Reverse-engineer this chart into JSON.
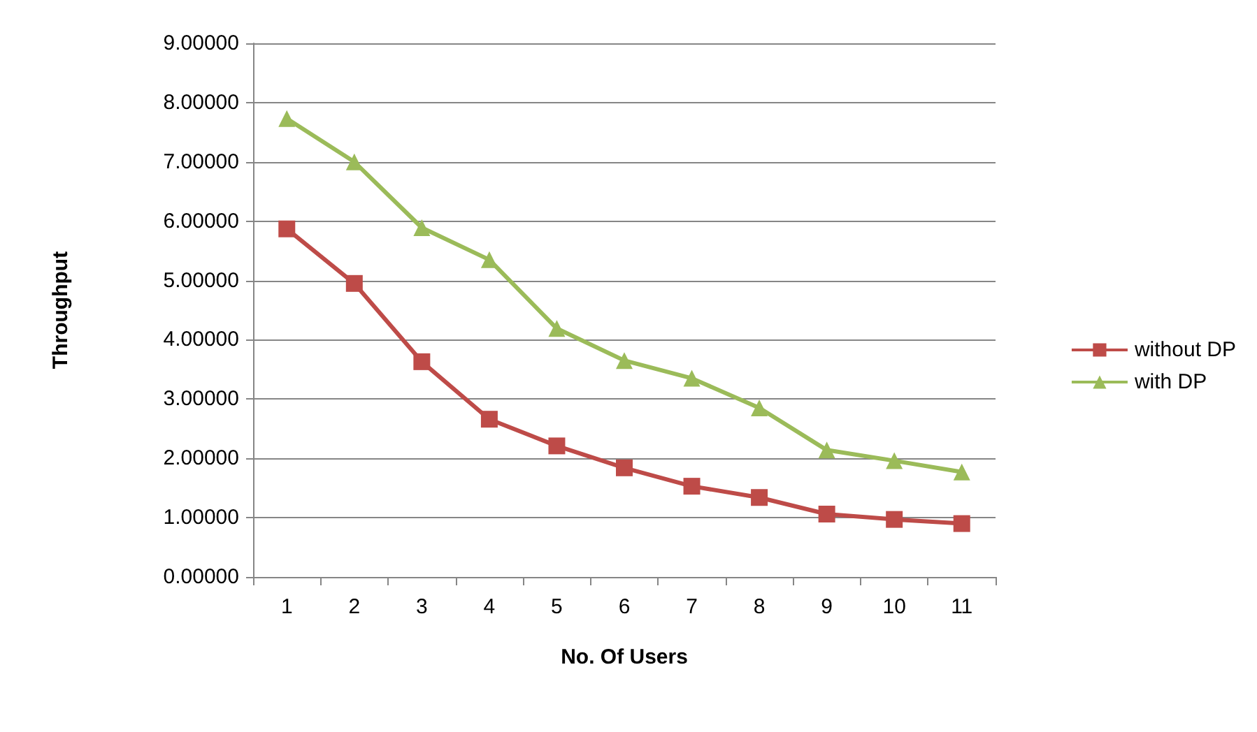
{
  "chart_data": {
    "type": "line",
    "xlabel": "No. Of Users",
    "ylabel": "Throughput",
    "categories": [
      "1",
      "2",
      "3",
      "4",
      "5",
      "6",
      "7",
      "8",
      "9",
      "10",
      "11"
    ],
    "series": [
      {
        "name": "without DP",
        "color": "#be4b48",
        "marker": "square",
        "values": [
          5.87,
          4.95,
          3.63,
          2.66,
          2.21,
          1.84,
          1.53,
          1.34,
          1.06,
          0.97,
          0.9
        ]
      },
      {
        "name": "with DP",
        "color": "#9bbb59",
        "marker": "triangle",
        "values": [
          7.73,
          7.0,
          5.89,
          5.35,
          4.19,
          3.65,
          3.35,
          2.85,
          2.14,
          1.96,
          1.77
        ]
      }
    ],
    "ylim": [
      0,
      9
    ],
    "yticks": [
      {
        "value": 0,
        "label": "0.00000"
      },
      {
        "value": 1,
        "label": "1.00000"
      },
      {
        "value": 2,
        "label": "2.00000"
      },
      {
        "value": 3,
        "label": "3.00000"
      },
      {
        "value": 4,
        "label": "4.00000"
      },
      {
        "value": 5,
        "label": "5.00000"
      },
      {
        "value": 6,
        "label": "6.00000"
      },
      {
        "value": 7,
        "label": "7.00000"
      },
      {
        "value": 8,
        "label": "8.00000"
      },
      {
        "value": 9,
        "label": "9.00000"
      }
    ],
    "grid": "y",
    "legend": "right",
    "line_style": "solid"
  }
}
